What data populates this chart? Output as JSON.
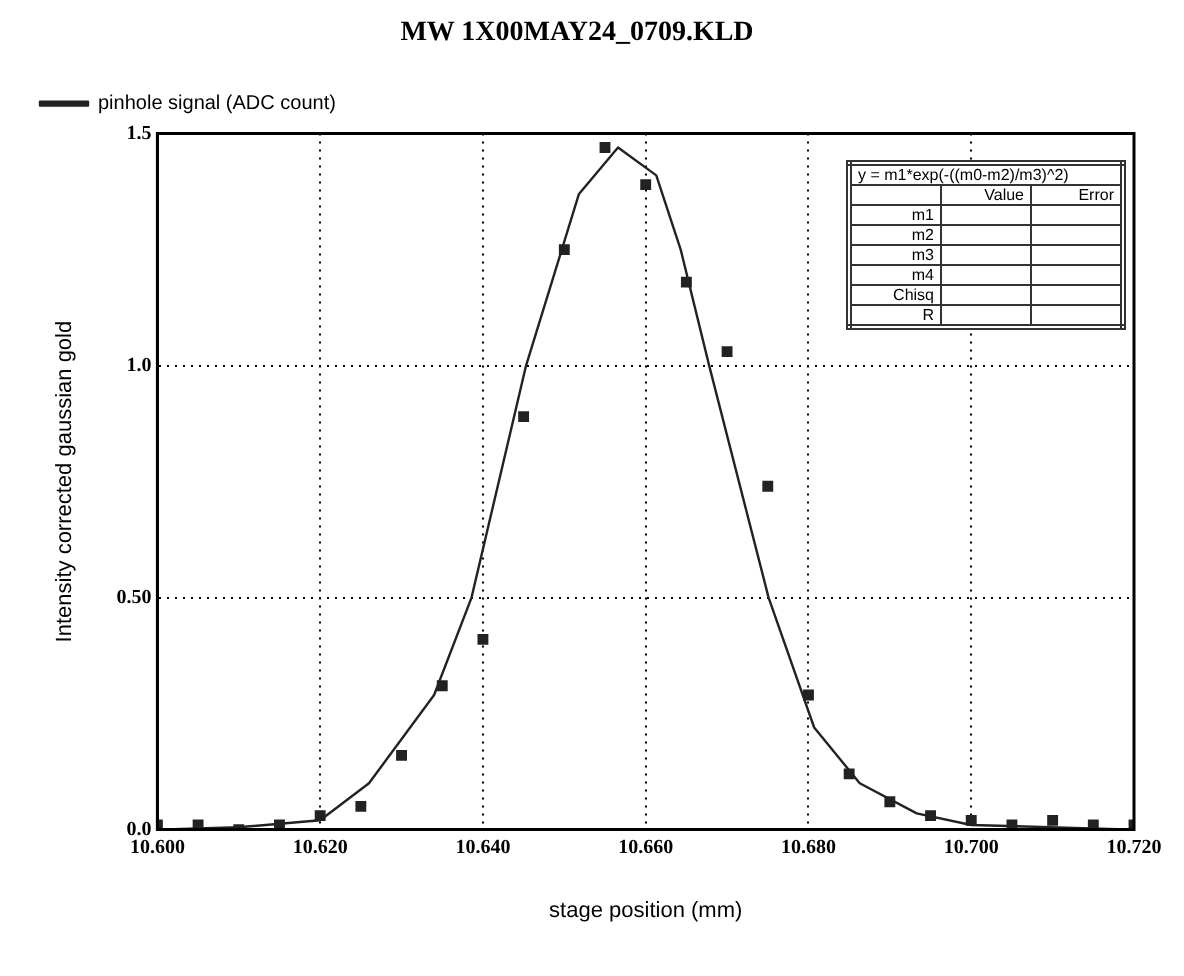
{
  "chart_data": {
    "type": "scatter",
    "title": "MW 1X00MAY24_0709.KLD",
    "xlabel": "stage position (mm)",
    "ylabel": "Intensity corrected gaussian gold",
    "xlim": [
      10.6,
      10.72
    ],
    "xticks": [
      {
        "value": 10.6,
        "label": "10.600"
      },
      {
        "value": 10.62,
        "label": "10.620"
      },
      {
        "value": 10.64,
        "label": "10.640"
      },
      {
        "value": 10.66,
        "label": "10.660"
      },
      {
        "value": 10.68,
        "label": "10.680"
      },
      {
        "value": 10.7,
        "label": "10.700"
      },
      {
        "value": 10.72,
        "label": "10.720"
      }
    ],
    "ylim": [
      0,
      1.5
    ],
    "yticks": [
      {
        "value": 0,
        "label": "0.0"
      },
      {
        "value": 0.5,
        "label": "0.50"
      },
      {
        "value": 1,
        "label": "1.0"
      },
      {
        "value": 1.5,
        "label": "1.5"
      }
    ],
    "grid": true,
    "legend": "top left",
    "line_style": "solid",
    "annotations": [
      "y = m1*exp(-((m0-m2)/m3)^2)",
      "Value",
      "Error",
      "m1",
      "m2",
      "m3",
      "m4",
      "Chisq",
      "R"
    ],
    "series": [
      {
        "name": "pinhole signal (ADC count)",
        "marker": "square",
        "color": "#222222",
        "x": [
          10.6,
          10.605,
          10.61,
          10.615,
          10.62,
          10.625,
          10.63,
          10.635,
          10.64,
          10.645,
          10.65,
          10.655,
          10.66,
          10.665,
          10.67,
          10.675,
          10.68,
          10.685,
          10.69,
          10.695,
          10.7,
          10.705,
          10.71,
          10.715,
          10.72
        ],
        "values": [
          0.01,
          0.01,
          0,
          0.01,
          0.03,
          0.05,
          0.16,
          0.31,
          0.41,
          0.89,
          1.25,
          1.47,
          1.39,
          1.18,
          1.03,
          0.74,
          0.29,
          0.12,
          0.06,
          0.03,
          0.02,
          0.01,
          0.02,
          0.01,
          0.01
        ]
      },
      {
        "type": "line",
        "marker": "none",
        "color": "#222222",
        "x": [
          10.6,
          10.61,
          10.62,
          10.626,
          10.634,
          10.6386,
          10.6453,
          10.6518,
          10.6566,
          10.6613,
          10.6643,
          10.6678,
          10.6751,
          10.6807,
          10.6863,
          10.6933,
          10.7,
          10.72
        ],
        "values": [
          0,
          0.005,
          0.02,
          0.1,
          0.29,
          0.5,
          1.0,
          1.37,
          1.47,
          1.41,
          1.25,
          1.0,
          0.5,
          0.22,
          0.1,
          0.035,
          0.01,
          0
        ]
      }
    ]
  }
}
